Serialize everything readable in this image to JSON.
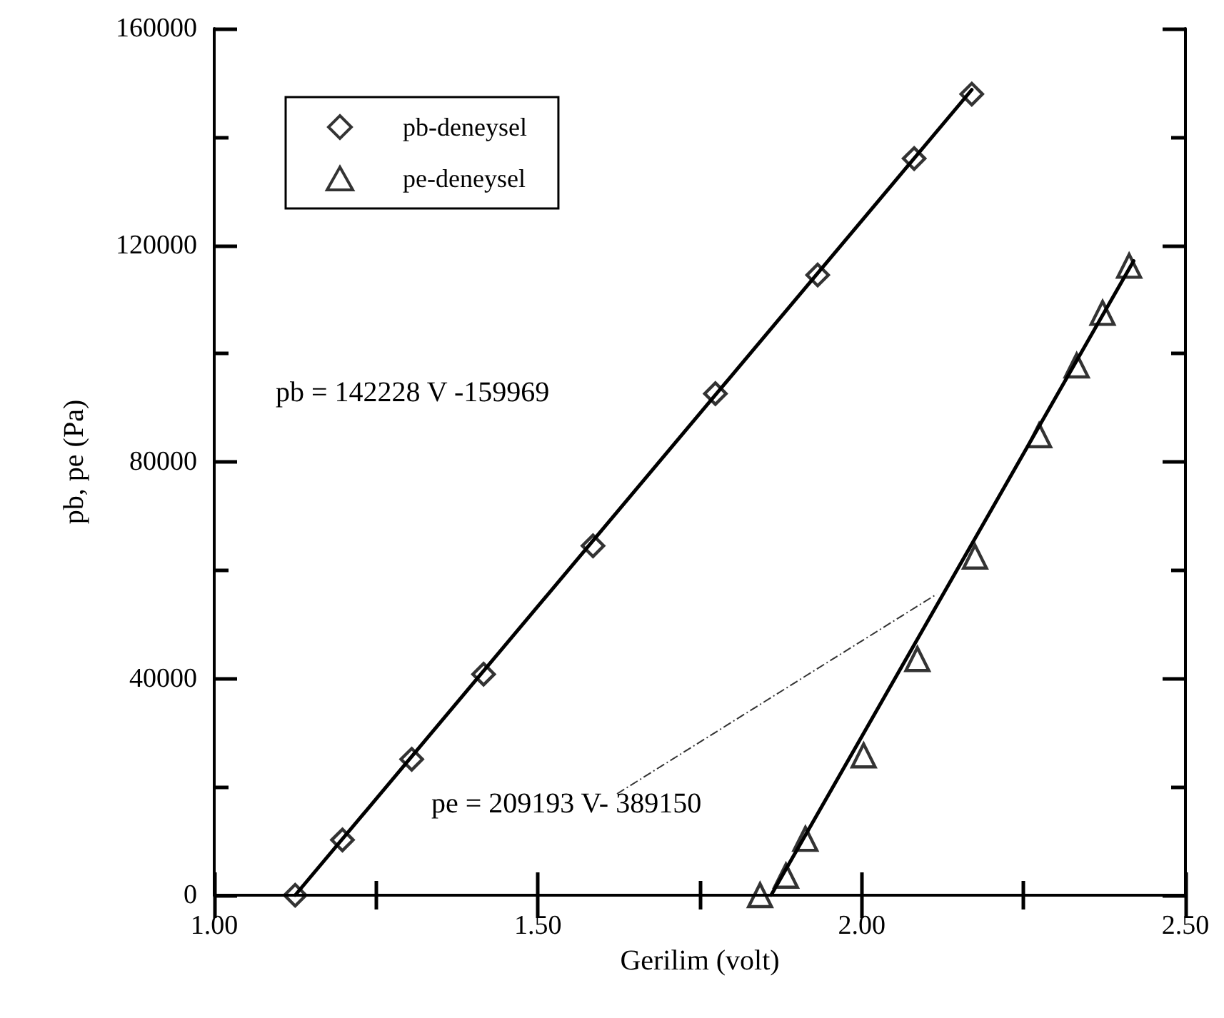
{
  "chart_data": {
    "type": "scatter",
    "xlabel": "Gerilim (volt)",
    "ylabel": "pb, pe (Pa)",
    "xlim": [
      1,
      2.5
    ],
    "xticks": [
      {
        "value": 1,
        "label": "1.00"
      },
      {
        "value": 1.25,
        "label": null
      },
      {
        "value": 1.5,
        "label": "1.50"
      },
      {
        "value": 1.75,
        "label": null
      },
      {
        "value": 2,
        "label": "2.00"
      },
      {
        "value": 2.25,
        "label": null
      },
      {
        "value": 2.5,
        "label": "2.50"
      }
    ],
    "ylim": [
      0,
      160000
    ],
    "yticks": [
      0,
      {
        "value": 20000,
        "label": null
      },
      40000,
      {
        "value": 60000,
        "label": null
      },
      80000,
      {
        "value": 100000,
        "label": null
      },
      120000,
      {
        "value": 140000,
        "label": null
      },
      160000
    ],
    "grid": false,
    "legend": "top left",
    "annotations": [
      "pb = 142228 V -159969",
      {
        "text": "pe = 209193 V- 389150",
        "x": 2.116,
        "y": 55600
      }
    ],
    "series": [
      {
        "name": "pb-deneysel",
        "marker": "diamond",
        "color": "#000000",
        "x": [
          1.125,
          1.198,
          1.305,
          1.416,
          1.585,
          1.774,
          1.932,
          2.081,
          2.17
        ],
        "values": [
          0,
          10200,
          25100,
          40800,
          64500,
          92600,
          114500,
          136000,
          147900
        ]
      },
      {
        "name": "pe-deneysel",
        "marker": "triangle",
        "color": "#000000",
        "x": [
          1.843,
          1.883,
          1.913,
          2.003,
          2.086,
          2.175,
          2.274,
          2.332,
          2.372,
          2.413
        ],
        "values": [
          0,
          3600,
          10400,
          25800,
          43600,
          62500,
          84900,
          97800,
          107500,
          116200
        ]
      },
      {
        "type": "line",
        "marker": "none",
        "line_style": "solid",
        "color": "#000000",
        "x": [
          1.125,
          2.17
        ],
        "values": [
          0,
          148700
        ]
      },
      {
        "type": "line",
        "marker": "none",
        "line_style": "solid",
        "color": "#000000",
        "x": [
          1.86,
          2.42
        ],
        "values": [
          0,
          117100
        ]
      }
    ]
  }
}
